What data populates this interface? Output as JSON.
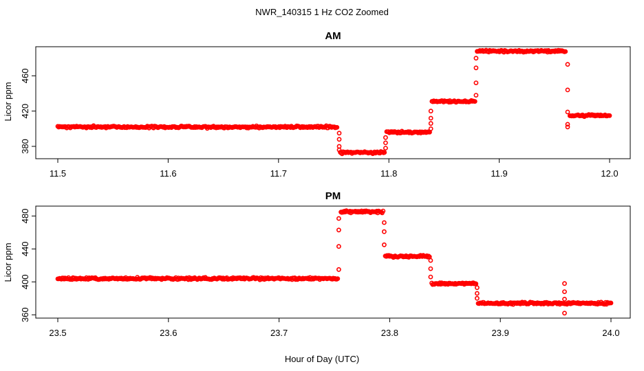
{
  "figure": {
    "title": "NWR_140315  1 Hz CO2 Zoomed",
    "xlabel": "Hour of Day (UTC)"
  },
  "style": {
    "point_color": "#ff0000"
  },
  "chart_data": [
    {
      "type": "scatter",
      "title": "AM",
      "xlabel": "Hour of Day (UTC)",
      "ylabel": "Licor ppm",
      "xlim": [
        11.5,
        12.0
      ],
      "ylim": [
        366,
        493
      ],
      "xticks": [
        "11.5",
        "11.6",
        "11.7",
        "11.8",
        "11.9",
        "12.0"
      ],
      "yticks": [
        "380",
        "420",
        "460"
      ],
      "grid": false,
      "marker": "open-circle",
      "plateaus": [
        {
          "x_start": 11.5,
          "x_end": 11.753,
          "y": 402
        },
        {
          "x_start": 11.756,
          "x_end": 11.796,
          "y": 373
        },
        {
          "x_start": 11.798,
          "x_end": 11.837,
          "y": 396
        },
        {
          "x_start": 11.839,
          "x_end": 11.878,
          "y": 431
        },
        {
          "x_start": 11.88,
          "x_end": 11.96,
          "y": 488
        },
        {
          "x_start": 11.964,
          "x_end": 12.0,
          "y": 415
        }
      ],
      "transitions": [
        {
          "x": 11.755,
          "y": [
            395,
            388,
            380,
            376
          ]
        },
        {
          "x": 11.797,
          "y": [
            378,
            384,
            390
          ]
        },
        {
          "x": 11.838,
          "y": [
            400,
            406,
            412,
            420
          ]
        },
        {
          "x": 11.879,
          "y": [
            438,
            452,
            469,
            480
          ]
        },
        {
          "x": 11.962,
          "y": [
            473,
            444,
            419,
            405,
            402
          ]
        }
      ]
    },
    {
      "type": "scatter",
      "title": "PM",
      "xlabel": "Hour of Day (UTC)",
      "ylabel": "Licor ppm",
      "xlim": [
        23.5,
        24.0
      ],
      "ylim": [
        356,
        492
      ],
      "xticks": [
        "23.5",
        "23.6",
        "23.7",
        "23.8",
        "23.9",
        "24.0"
      ],
      "yticks": [
        "360",
        "400",
        "440",
        "480"
      ],
      "grid": false,
      "marker": "open-circle",
      "plateaus": [
        {
          "x_start": 23.5,
          "x_end": 23.753,
          "y": 404
        },
        {
          "x_start": 23.756,
          "x_end": 23.794,
          "y": 485
        },
        {
          "x_start": 23.796,
          "x_end": 23.836,
          "y": 431
        },
        {
          "x_start": 23.838,
          "x_end": 23.878,
          "y": 398
        },
        {
          "x_start": 23.88,
          "x_end": 24.0,
          "y": 374
        }
      ],
      "transitions": [
        {
          "x": 23.754,
          "y": [
            415,
            443,
            463,
            477
          ]
        },
        {
          "x": 23.795,
          "y": [
            472,
            461,
            445
          ]
        },
        {
          "x": 23.837,
          "y": [
            426,
            416,
            406
          ]
        },
        {
          "x": 23.879,
          "y": [
            393,
            386,
            380
          ]
        },
        {
          "x": 23.958,
          "y": [
            398,
            388,
            379,
            362
          ]
        }
      ]
    }
  ]
}
